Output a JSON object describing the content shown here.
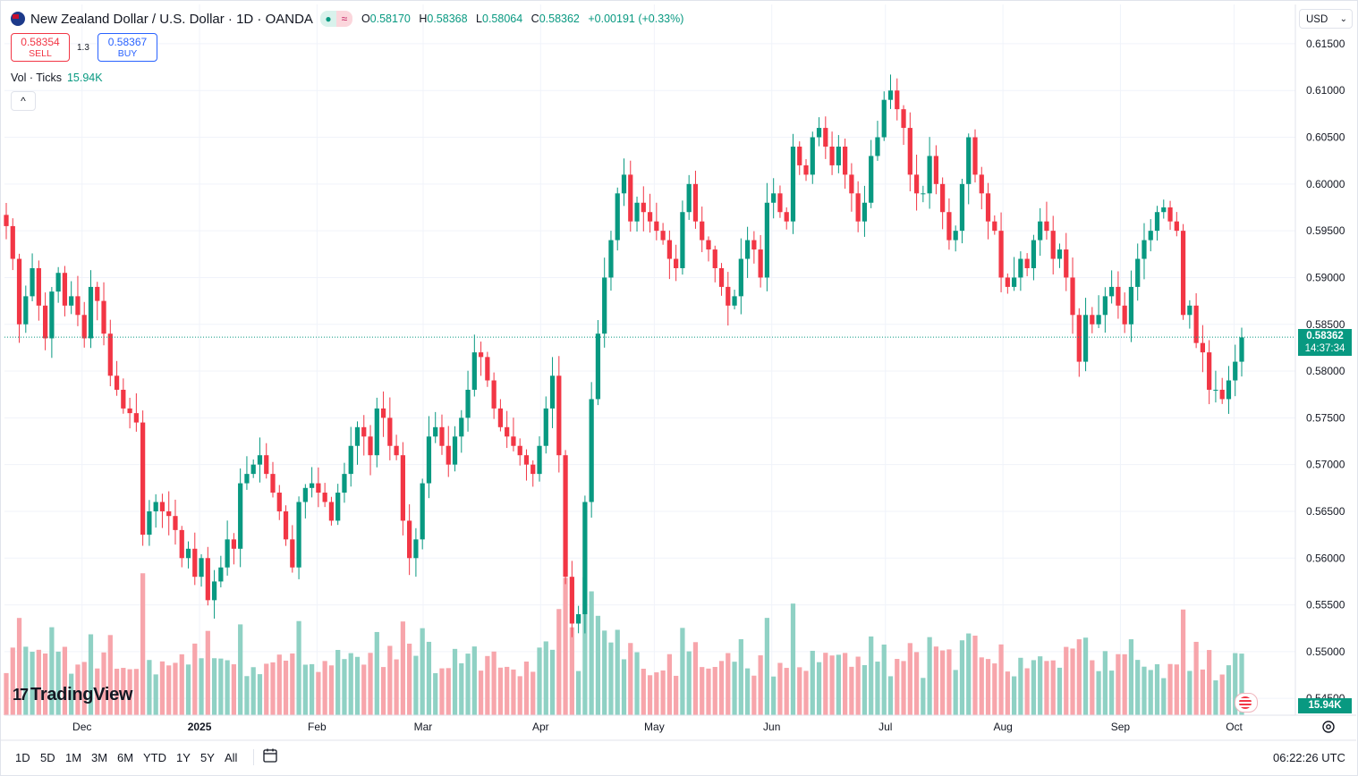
{
  "legend": {
    "title": "New Zealand Dollar / U.S. Dollar · 1D · OANDA",
    "o_label": "O",
    "o": "0.58170",
    "h_label": "H",
    "h": "0.58368",
    "l_label": "L",
    "l": "0.58064",
    "c_label": "C",
    "c": "0.58362",
    "change": "+0.00191 (+0.33%)",
    "market_dot": "●",
    "market_wave": "≈"
  },
  "trade": {
    "sell_price": "0.58354",
    "sell_label": "SELL",
    "spread": "1.3",
    "buy_price": "0.58367",
    "buy_label": "BUY"
  },
  "volume_legend": {
    "label": "Vol · Ticks",
    "value": "15.94K"
  },
  "collapse_icon": "^",
  "currency": {
    "value": "USD",
    "icon": "chevron-down-icon"
  },
  "price_tag": {
    "price": "0.58362",
    "countdown": "14:37:34"
  },
  "volume_tag": "15.94K",
  "logo": {
    "mark": "17",
    "text": "TradingView"
  },
  "timeframes": [
    "1D",
    "5D",
    "1M",
    "3M",
    "6M",
    "YTD",
    "1Y",
    "5Y",
    "All"
  ],
  "clock": "06:22:26 UTC",
  "colors": {
    "up": "#089981",
    "down": "#f23645",
    "up_vol": "#8fd1c4",
    "down_vol": "#f7a5ab"
  },
  "chart_data": {
    "type": "candlestick",
    "y_axis_ticks": [
      "0.61500",
      "0.61000",
      "0.60500",
      "0.60000",
      "0.59500",
      "0.59000",
      "0.58500",
      "0.58000",
      "0.57500",
      "0.57000",
      "0.56500",
      "0.56000",
      "0.55500",
      "0.55000",
      "0.54500"
    ],
    "ylim": [
      0.5432,
      0.6192
    ],
    "x_ticks": [
      {
        "label": "Dec",
        "date": "2024-12-01"
      },
      {
        "label": "2025",
        "date": "2025-01-01"
      },
      {
        "label": "Feb",
        "date": "2025-02-01"
      },
      {
        "label": "Mar",
        "date": "2025-03-01"
      },
      {
        "label": "Apr",
        "date": "2025-04-01"
      },
      {
        "label": "May",
        "date": "2025-05-01"
      },
      {
        "label": "Jun",
        "date": "2025-06-01"
      },
      {
        "label": "Jul",
        "date": "2025-07-01"
      },
      {
        "label": "Aug",
        "date": "2025-08-01"
      },
      {
        "label": "Sep",
        "date": "2025-09-01"
      },
      {
        "label": "Oct",
        "date": "2025-10-01"
      }
    ],
    "first_date": "2024-11-11",
    "last_date": "2025-10-03",
    "last_price": 0.58362,
    "closes": [
      0.5955,
      0.592,
      0.585,
      0.588,
      0.591,
      0.587,
      0.5835,
      0.5885,
      0.5905,
      0.587,
      0.588,
      0.586,
      0.5835,
      0.589,
      0.5875,
      0.584,
      0.5795,
      0.578,
      0.576,
      0.5755,
      0.5745,
      0.5625,
      0.565,
      0.566,
      0.565,
      0.5645,
      0.563,
      0.56,
      0.561,
      0.558,
      0.56,
      0.5555,
      0.5575,
      0.559,
      0.562,
      0.561,
      0.568,
      0.569,
      0.57,
      0.571,
      0.569,
      0.567,
      0.565,
      0.562,
      0.559,
      0.566,
      0.5675,
      0.568,
      0.567,
      0.566,
      0.564,
      0.567,
      0.569,
      0.572,
      0.574,
      0.573,
      0.571,
      0.576,
      0.575,
      0.572,
      0.571,
      0.564,
      0.56,
      0.562,
      0.568,
      0.573,
      0.574,
      0.572,
      0.57,
      0.573,
      0.575,
      0.578,
      0.582,
      0.5815,
      0.579,
      0.576,
      0.574,
      0.573,
      0.572,
      0.571,
      0.57,
      0.569,
      0.572,
      0.576,
      0.5795,
      0.571,
      0.558,
      0.553,
      0.554,
      0.566,
      0.577,
      0.584,
      0.59,
      0.594,
      0.599,
      0.601,
      0.596,
      0.598,
      0.597,
      0.596,
      0.595,
      0.594,
      0.592,
      0.591,
      0.597,
      0.6,
      0.596,
      0.594,
      0.593,
      0.591,
      0.589,
      0.587,
      0.588,
      0.592,
      0.594,
      0.593,
      0.59,
      0.598,
      0.599,
      0.597,
      0.596,
      0.604,
      0.602,
      0.601,
      0.605,
      0.606,
      0.604,
      0.602,
      0.604,
      0.601,
      0.599,
      0.596,
      0.598,
      0.603,
      0.605,
      0.609,
      0.61,
      0.608,
      0.606,
      0.601,
      0.599,
      0.599,
      0.603,
      0.6,
      0.597,
      0.594,
      0.595,
      0.6,
      0.605,
      0.601,
      0.599,
      0.596,
      0.595,
      0.59,
      0.589,
      0.59,
      0.592,
      0.591,
      0.594,
      0.596,
      0.595,
      0.592,
      0.593,
      0.59,
      0.586,
      0.581,
      0.586,
      0.585,
      0.586,
      0.588,
      0.589,
      0.587,
      0.585,
      0.589,
      0.592,
      0.594,
      0.595,
      0.597,
      0.5975,
      0.596,
      0.595,
      0.586,
      0.587,
      0.583,
      0.582,
      0.578,
      0.578,
      0.577,
      0.579,
      0.581,
      0.5836
    ],
    "notes": "Daily OHLC candles with tick volume histogram beneath; dotted line marks last price."
  }
}
